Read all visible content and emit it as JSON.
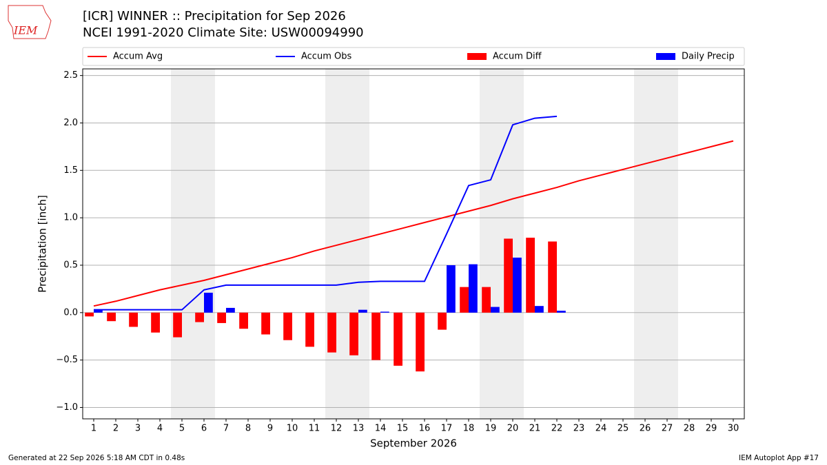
{
  "logo": "IEM",
  "footer_left": "Generated at 22 Sep 2026 5:18 AM CDT in 0.48s",
  "footer_right": "IEM Autoplot App #17",
  "chart_data": {
    "type": "combo",
    "title": "[ICR] WINNER :: Precipitation for Sep 2026",
    "subtitle": "NCEI 1991-2020 Climate Site: USW00094990",
    "x_label": "September 2026",
    "y_label": "Precipitation [inch]",
    "x": [
      1,
      2,
      3,
      4,
      5,
      6,
      7,
      8,
      9,
      10,
      11,
      12,
      13,
      14,
      15,
      16,
      17,
      18,
      19,
      20,
      21,
      22,
      23,
      24,
      25,
      26,
      27,
      28,
      29,
      30
    ],
    "xlim": [
      0.5,
      30.5
    ],
    "xticks": [
      1,
      2,
      3,
      4,
      5,
      6,
      7,
      8,
      9,
      10,
      11,
      12,
      13,
      14,
      15,
      16,
      17,
      18,
      19,
      20,
      21,
      22,
      23,
      24,
      25,
      26,
      27,
      28,
      29,
      30
    ],
    "ylim": [
      -1.12,
      2.57
    ],
    "yticks": [
      {
        "value": -1.0,
        "label": "−1.0"
      },
      {
        "value": -0.5,
        "label": "−0.5"
      },
      {
        "value": 0,
        "label": "0.0"
      },
      {
        "value": 0.5,
        "label": "0.5"
      },
      {
        "value": 1.0,
        "label": "1.0"
      },
      {
        "value": 1.5,
        "label": "1.5"
      },
      {
        "value": 2.0,
        "label": "2.0"
      },
      {
        "value": 2.5,
        "label": "2.5"
      }
    ],
    "grid": true,
    "weekend_days": [
      5,
      6,
      12,
      13,
      19,
      20,
      26,
      27
    ],
    "series": [
      {
        "name": "Accum Avg",
        "type": "line",
        "color": "#ff0000",
        "values": [
          0.07,
          0.12,
          0.18,
          0.24,
          0.29,
          0.34,
          0.4,
          0.46,
          0.52,
          0.58,
          0.65,
          0.71,
          0.77,
          0.83,
          0.89,
          0.95,
          1.01,
          1.07,
          1.13,
          1.2,
          1.26,
          1.32,
          1.39,
          1.45,
          1.51,
          1.57,
          1.63,
          1.69,
          1.75,
          1.81
        ]
      },
      {
        "name": "Accum Obs",
        "type": "line",
        "color": "#0000ff",
        "values": [
          0.03,
          0.03,
          0.03,
          0.03,
          0.03,
          0.24,
          0.29,
          0.29,
          0.29,
          0.29,
          0.29,
          0.29,
          0.32,
          0.33,
          0.33,
          0.33,
          0.83,
          1.34,
          1.4,
          1.98,
          2.05,
          2.07,
          null,
          null,
          null,
          null,
          null,
          null,
          null,
          null
        ]
      },
      {
        "name": "Accum Diff",
        "type": "bar",
        "color": "#ff0000",
        "values": [
          -0.04,
          -0.09,
          -0.15,
          -0.21,
          -0.26,
          -0.1,
          -0.11,
          -0.17,
          -0.23,
          -0.29,
          -0.36,
          -0.42,
          -0.45,
          -0.5,
          -0.56,
          -0.62,
          -0.18,
          0.27,
          0.27,
          0.78,
          0.79,
          0.75,
          null,
          null,
          null,
          null,
          null,
          null,
          null,
          null
        ]
      },
      {
        "name": "Daily Precip",
        "type": "bar",
        "color": "#0000ff",
        "values": [
          0.03,
          0,
          0,
          0,
          0,
          0.21,
          0.05,
          0,
          0,
          0,
          0,
          0,
          0.03,
          0.01,
          0,
          0,
          0.5,
          0.51,
          0.06,
          0.58,
          0.07,
          0.02,
          null,
          null,
          null,
          null,
          null,
          null,
          null,
          null
        ]
      }
    ]
  }
}
